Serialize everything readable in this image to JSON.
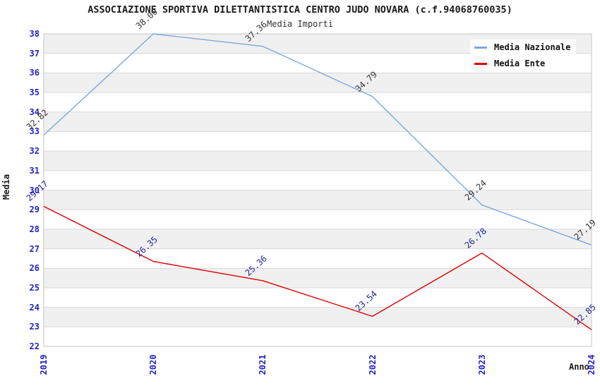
{
  "header": {
    "title": "ASSOCIAZIONE SPORTIVA DILETTANTISTICA CENTRO JUDO NOVARA (c.f.94068760035)",
    "subtitle": "Media Importi"
  },
  "colors": {
    "nazionale_line": "#7aa9dc",
    "ente_line": "#e00000",
    "tick_label": "#2222cc",
    "band": "#f0f0f0",
    "gridline": "#d9d9d9",
    "plot_border": "#c6c6c6",
    "value_label_nazionale": "#333333",
    "value_label_ente": "#22229c"
  },
  "legend": {
    "items": [
      {
        "label": "Media Nazionale",
        "color": "#7aa9dc"
      },
      {
        "label": "Media Ente",
        "color": "#e00000"
      }
    ]
  },
  "chart_data": {
    "type": "line",
    "x": [
      "2019",
      "2020",
      "2021",
      "2022",
      "2023",
      "2024"
    ],
    "series": [
      {
        "name": "Media Nazionale",
        "color": "#7aa9dc",
        "label_color": "#333333",
        "values": [
          32.82,
          38.0,
          37.36,
          34.79,
          29.24,
          27.19
        ]
      },
      {
        "name": "Media Ente",
        "color": "#e00000",
        "label_color": "#22229c",
        "values": [
          29.17,
          26.35,
          25.36,
          23.54,
          26.78,
          22.85
        ]
      }
    ],
    "title": "ASSOCIAZIONE SPORTIVA DILETTANTISTICA CENTRO JUDO NOVARA (c.f.94068760035)",
    "subtitle": "Media Importi",
    "xlabel": "Anno",
    "ylabel": "Media",
    "ylim": [
      22,
      38
    ],
    "ytick_step": 1,
    "grid": true,
    "banded_background": true,
    "legend_position": "top-right",
    "value_label_format": "0.00"
  }
}
